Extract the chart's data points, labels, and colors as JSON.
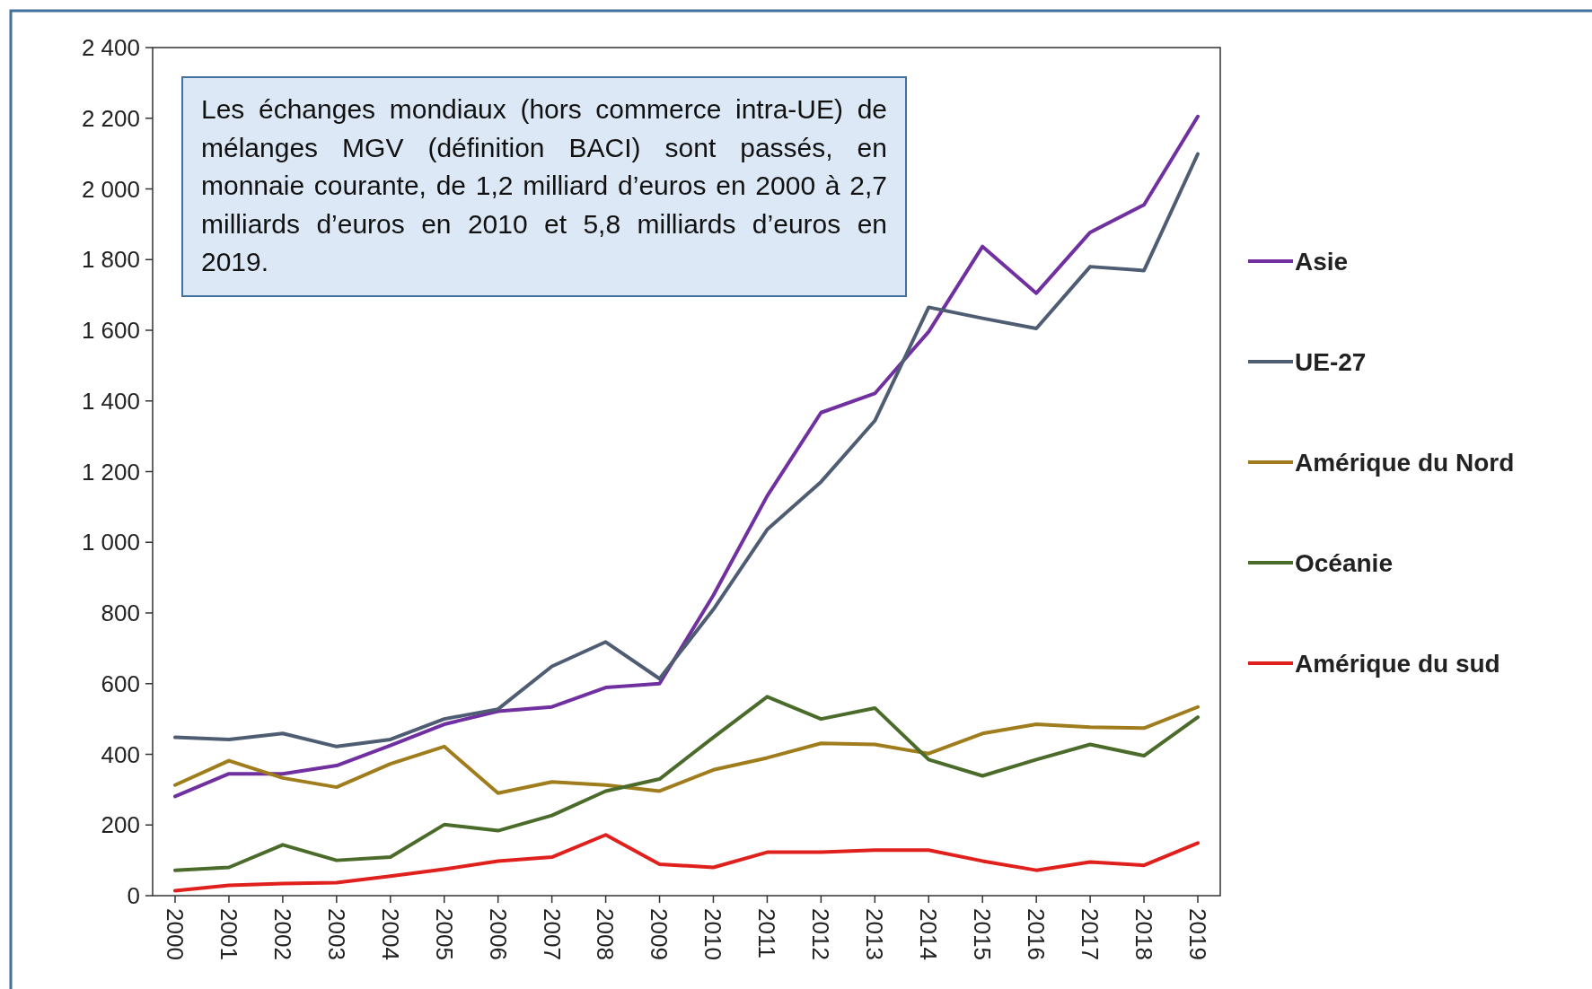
{
  "chart_data": {
    "type": "line",
    "categories": [
      "2000",
      "2001",
      "2002",
      "2003",
      "2004",
      "2005",
      "2006",
      "2007",
      "2008",
      "2009",
      "2010",
      "2011",
      "2012",
      "2013",
      "2014",
      "2015",
      "2016",
      "2017",
      "2018",
      "2019"
    ],
    "ylim": [
      0,
      2400
    ],
    "yticks": [
      0,
      200,
      400,
      600,
      800,
      {
        "value": 1000,
        "label": "1 000"
      },
      {
        "value": 1200,
        "label": "1 200"
      },
      {
        "value": 1400,
        "label": "1 400"
      },
      {
        "value": 1600,
        "label": "1 600"
      },
      {
        "value": 1800,
        "label": "1 800"
      },
      {
        "value": 2000,
        "label": "2 000"
      },
      {
        "value": 2200,
        "label": "2 200"
      },
      {
        "value": 2400,
        "label": "2 400"
      }
    ],
    "grid": false,
    "legend": "right",
    "marker": "none",
    "line_style": "solid",
    "annotations": [
      "Les échanges mondiaux (hors commerce intra-UE) de mélanges MGV (définition BACI) sont passés, en monnaie courante, de 1,2 milliard d’euros en 2000 à 2,7 milliards d’euros en 2010 et 5,8 milliards d’euros en 2019."
    ],
    "series": [
      {
        "name": "Asie",
        "color": "#7030a0",
        "values": [
          281,
          345,
          345,
          368,
          425,
          485,
          522,
          534,
          589,
          600,
          850,
          1131,
          1367,
          1421,
          1596,
          1837,
          1705,
          1877,
          1955,
          2205
        ]
      },
      {
        "name": "UE-27",
        "color": "#4f5d73",
        "values": [
          448,
          442,
          459,
          422,
          442,
          500,
          528,
          649,
          718,
          614,
          810,
          1036,
          1171,
          1344,
          1665,
          1634,
          1605,
          1780,
          1769,
          2099
        ]
      },
      {
        "name": "Amérique du Nord",
        "color": "#a07d1c",
        "values": [
          313,
          382,
          333,
          307,
          373,
          422,
          290,
          322,
          313,
          296,
          356,
          390,
          431,
          428,
          402,
          459,
          485,
          477,
          474,
          534
        ]
      },
      {
        "name": "Océanie",
        "color": "#4a6b2a",
        "values": [
          72,
          80,
          144,
          100,
          109,
          201,
          184,
          227,
          296,
          330,
          448,
          563,
          500,
          531,
          385,
          339,
          385,
          428,
          396,
          505
        ]
      },
      {
        "name": "Amérique du sud",
        "color": "#e0201c",
        "values": [
          14,
          29,
          34,
          37,
          55,
          75,
          98,
          109,
          172,
          89,
          80,
          123,
          123,
          129,
          129,
          98,
          72,
          95,
          86,
          149
        ]
      }
    ]
  }
}
